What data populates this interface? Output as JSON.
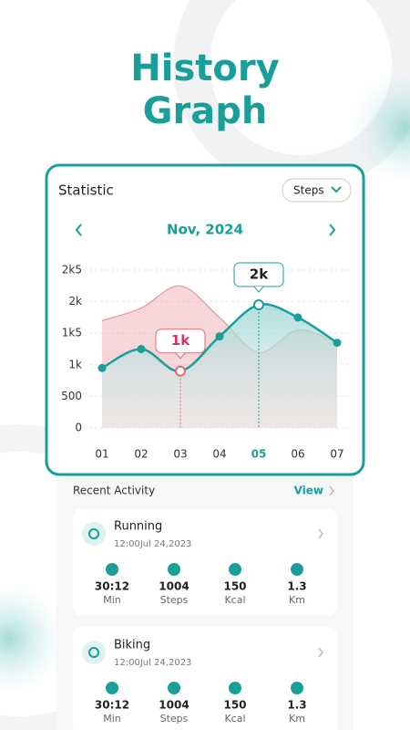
{
  "header": {
    "title_lines": [
      "History",
      "Graph"
    ]
  },
  "card": {
    "title": "Statistic",
    "dropdown": "Steps",
    "month": "Nov, 2024"
  },
  "chart_data": {
    "type": "area",
    "categories": [
      "01",
      "02",
      "03",
      "04",
      "05",
      "06",
      "07"
    ],
    "series": [
      {
        "color": "#e58a8a",
        "values": [
          1700,
          1900,
          2250,
          1750,
          1200,
          1550,
          1350
        ]
      },
      {
        "color": "#1a9e9a",
        "values": [
          950,
          1250,
          900,
          1450,
          1950,
          1750,
          1350
        ],
        "value_labels": [
          null,
          null,
          "1k",
          null,
          "2k",
          null,
          null
        ]
      }
    ],
    "ylim": [
      0,
      2500
    ],
    "yticks": [
      0,
      500,
      {
        "value": 1000,
        "label": "1k"
      },
      {
        "value": 1500,
        "label": "1k5"
      },
      {
        "value": 2000,
        "label": "2k"
      },
      {
        "value": 2500,
        "label": "2k5"
      }
    ],
    "grid": true
  },
  "recent": {
    "title": "Recent Activity",
    "link": "View",
    "items": [
      {
        "name": "Running",
        "time": "12:00Jul 24,2023",
        "stats": [
          {
            "value": "30:12",
            "unit": "Min"
          },
          {
            "value": "1004",
            "unit": "Steps"
          },
          {
            "value": "150",
            "unit": "Kcal"
          },
          {
            "value": "1.3",
            "unit": "Km"
          }
        ]
      },
      {
        "name": "Biking",
        "time": "12:00Jul 24,2023",
        "stats": [
          {
            "value": "30:12",
            "unit": "Min"
          },
          {
            "value": "1004",
            "unit": "Steps"
          },
          {
            "value": "150",
            "unit": "Kcal"
          },
          {
            "value": "1.3",
            "unit": "Km"
          }
        ]
      }
    ]
  }
}
